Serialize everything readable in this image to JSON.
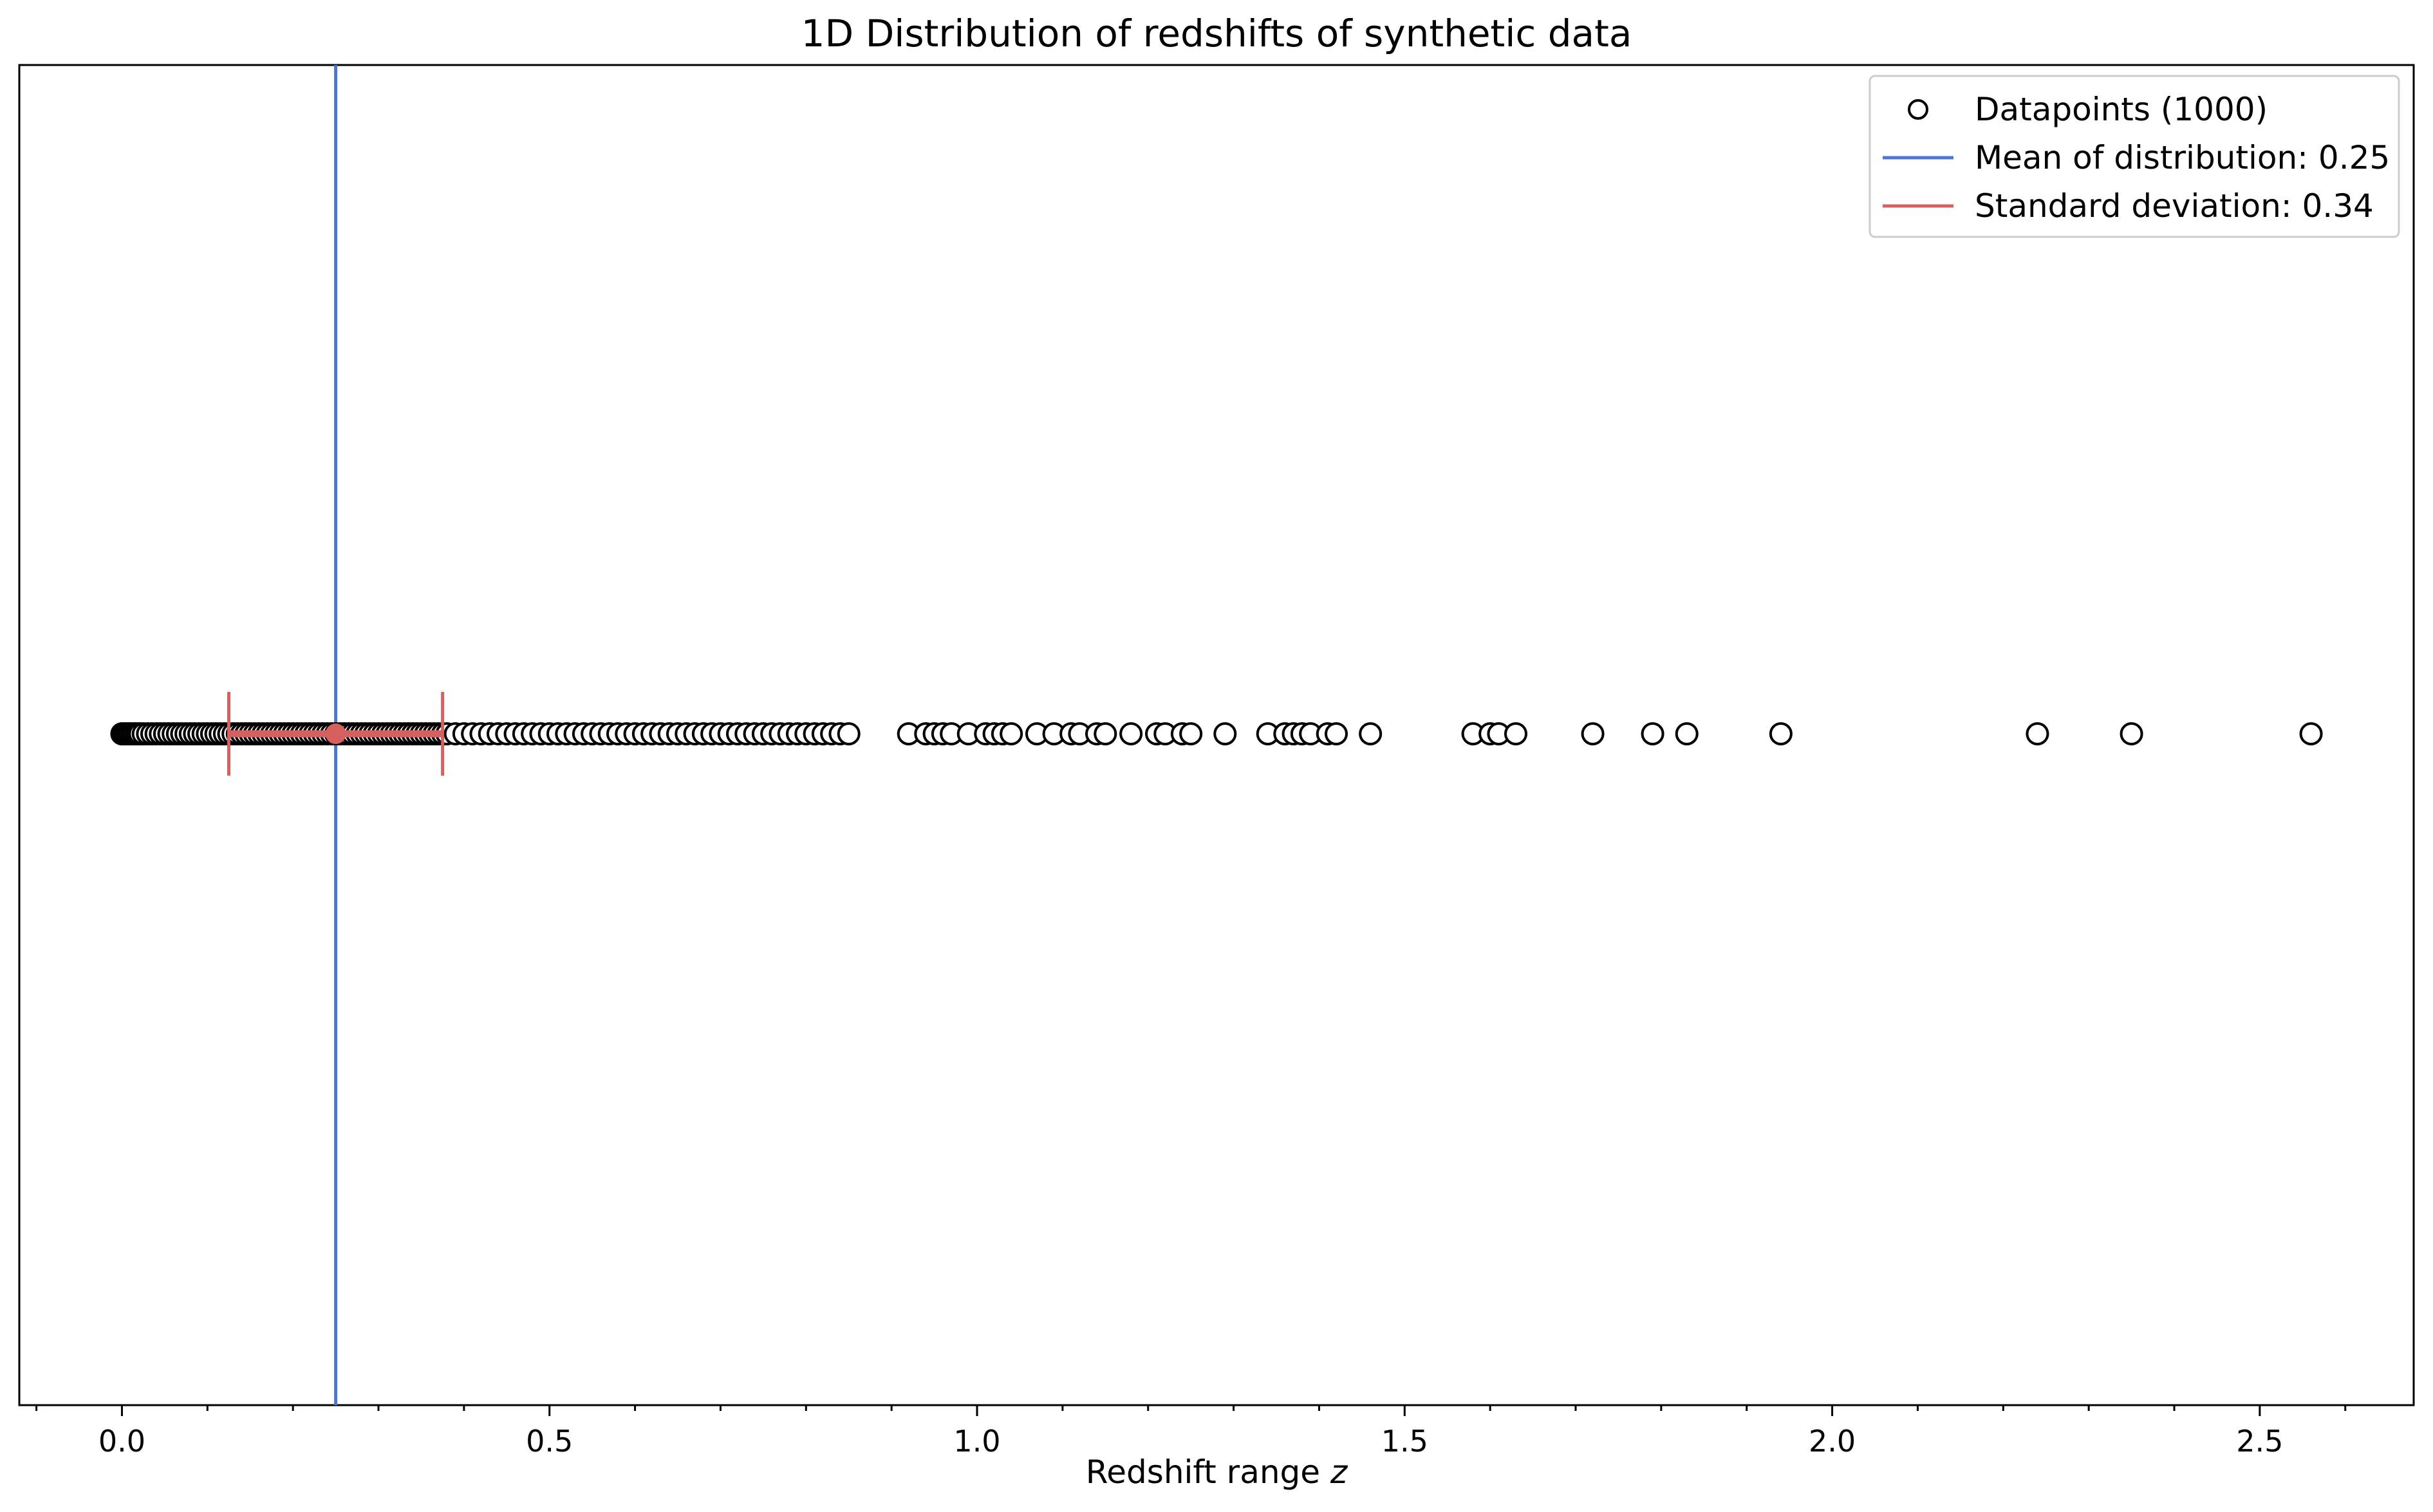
{
  "chart_data": {
    "type": "scatter",
    "title": "1D Distribution of redshifts of synthetic data",
    "xlabel_prefix": "Redshift range ",
    "xlabel_symbol": "z",
    "xlim": [
      -0.12,
      2.68
    ],
    "x_ticks": [
      0.0,
      0.5,
      1.0,
      1.5,
      2.0,
      2.5
    ],
    "x_tick_labels": [
      "0.0",
      "0.5",
      "1.0",
      "1.5",
      "2.0",
      "2.5"
    ],
    "minor_tick_step": 0.1,
    "grid": false,
    "legend_position": "top-right",
    "legend": {
      "datapoints": "Datapoints (1000)",
      "mean": "Mean of distribution: 0.25",
      "std": "Standard deviation: 0.34"
    },
    "mean": 0.25,
    "std": 0.34,
    "errorbar": {
      "center": 0.25,
      "low": 0.125,
      "high": 0.375
    },
    "colors": {
      "points": "#000000",
      "mean": "#4878cf",
      "std": "#d65f5f"
    },
    "series": [
      {
        "x": [
          0.0,
          0.003,
          0.006,
          0.009,
          0.012,
          0.015,
          0.018,
          0.021,
          0.025,
          0.03,
          0.035,
          0.04,
          0.045,
          0.05,
          0.055,
          0.06,
          0.065,
          0.07,
          0.075,
          0.08,
          0.085,
          0.09,
          0.095,
          0.1,
          0.105,
          0.11,
          0.115,
          0.12,
          0.125,
          0.13,
          0.135,
          0.14,
          0.145,
          0.15,
          0.155,
          0.16,
          0.165,
          0.17,
          0.175,
          0.18,
          0.185,
          0.19,
          0.195,
          0.2,
          0.205,
          0.21,
          0.215,
          0.22,
          0.225,
          0.23,
          0.235,
          0.24,
          0.245,
          0.25,
          0.255,
          0.26,
          0.265,
          0.27,
          0.275,
          0.28,
          0.285,
          0.29,
          0.295,
          0.3,
          0.305,
          0.31,
          0.315,
          0.32,
          0.325,
          0.33,
          0.335,
          0.34,
          0.345,
          0.35,
          0.355,
          0.36,
          0.365,
          0.37,
          0.375,
          0.38,
          0.39,
          0.4,
          0.41,
          0.42,
          0.43,
          0.44,
          0.45,
          0.46,
          0.47,
          0.48,
          0.49,
          0.5,
          0.51,
          0.52,
          0.53,
          0.54,
          0.55,
          0.56,
          0.57,
          0.58,
          0.59,
          0.6,
          0.61,
          0.62,
          0.63,
          0.64,
          0.65,
          0.66,
          0.67,
          0.68,
          0.69,
          0.7,
          0.71,
          0.72,
          0.73,
          0.74,
          0.75,
          0.76,
          0.77,
          0.78,
          0.79,
          0.8,
          0.81,
          0.82,
          0.83,
          0.84,
          0.85,
          0.92,
          0.94,
          0.95,
          0.96,
          0.97,
          0.99,
          1.01,
          1.02,
          1.03,
          1.04,
          1.07,
          1.09,
          1.11,
          1.12,
          1.14,
          1.15,
          1.18,
          1.21,
          1.22,
          1.24,
          1.25,
          1.29,
          1.34,
          1.36,
          1.37,
          1.38,
          1.39,
          1.41,
          1.42,
          1.46,
          1.58,
          1.6,
          1.61,
          1.63,
          1.72,
          1.79,
          1.83,
          1.94,
          2.24,
          2.35,
          2.56
        ]
      }
    ]
  }
}
